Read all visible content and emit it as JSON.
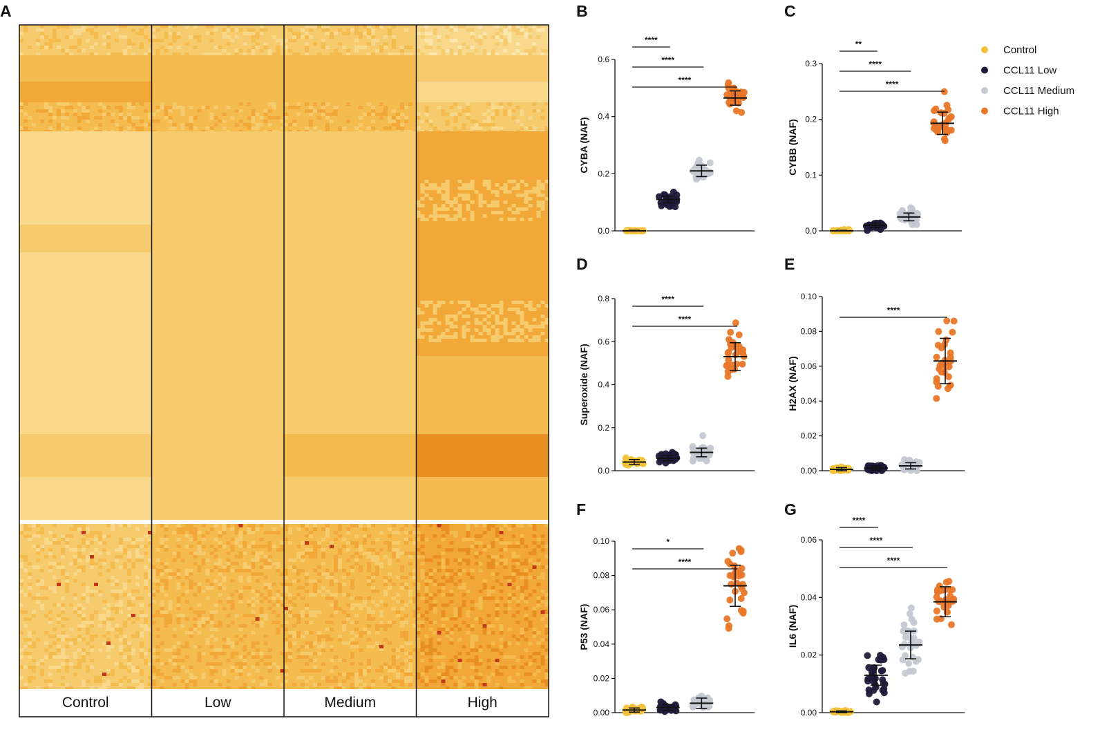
{
  "figure": {
    "panel_letters": [
      "A",
      "B",
      "C",
      "D",
      "E",
      "F",
      "G"
    ]
  },
  "legend": {
    "items": [
      {
        "label": "Control",
        "color": "#f2c23a"
      },
      {
        "label": "CCL11 Low",
        "color": "#1f1a3a"
      },
      {
        "label": "CCL11 Medium",
        "color": "#c3c8d2"
      },
      {
        "label": "CCL11 High",
        "color": "#e8772a"
      }
    ]
  },
  "chart_data": [
    {
      "type": "heatmap",
      "panel": "A",
      "columns": [
        "Control",
        "Low",
        "Medium",
        "High"
      ],
      "palette": [
        "#fbe6ae",
        "#f8d88a",
        "#f5cb6d",
        "#f4bb4f",
        "#f1a838",
        "#e98f22",
        "#c0391a",
        "#8a1c14"
      ],
      "description_blocks": [
        {
          "block": "header-striped",
          "levels": [
            2,
            2,
            2,
            1
          ]
        },
        {
          "block": "row-band",
          "levels": [
            3,
            3,
            3,
            2
          ]
        },
        {
          "block": "row-band",
          "levels": [
            4,
            3,
            3,
            1
          ]
        },
        {
          "block": "row-band-striped",
          "levels": [
            3,
            3,
            3,
            2
          ]
        },
        {
          "block": "row-band",
          "levels": [
            1,
            2,
            2,
            4
          ]
        },
        {
          "block": "row-band",
          "levels": [
            2,
            2,
            2,
            4
          ]
        },
        {
          "block": "row-band",
          "levels": [
            1,
            2,
            2,
            4
          ]
        },
        {
          "block": "row-band",
          "levels": [
            1,
            2,
            2,
            3
          ]
        },
        {
          "block": "row-band",
          "levels": [
            2,
            2,
            3,
            5
          ]
        },
        {
          "block": "row-band",
          "levels": [
            1,
            2,
            2,
            3
          ]
        },
        {
          "block": "lower-striped",
          "levels": [
            2,
            3,
            3,
            4
          ]
        }
      ]
    },
    {
      "type": "scatter",
      "panel": "B",
      "ylabel": "CYBA (NAF)",
      "ylim": [
        0,
        0.6
      ],
      "yticks": [
        "0.0",
        "0.2",
        "0.4",
        "0.6"
      ],
      "groups": [
        "Control",
        "CCL11 Low",
        "CCL11 Medium",
        "CCL11 High"
      ],
      "means": [
        0.0,
        0.11,
        0.21,
        0.465
      ],
      "sd": [
        0.002,
        0.012,
        0.02,
        0.025
      ],
      "spread": [
        0.002,
        0.03,
        0.035,
        0.05
      ],
      "comparisons": [
        {
          "from": 0,
          "to": 1,
          "label": "****"
        },
        {
          "from": 0,
          "to": 2,
          "label": "****"
        },
        {
          "from": 0,
          "to": 3,
          "label": "****"
        }
      ]
    },
    {
      "type": "scatter",
      "panel": "C",
      "ylabel": "CYBB (NAF)",
      "ylim": [
        0,
        0.3
      ],
      "yticks": [
        "0.0",
        "0.1",
        "0.2",
        "0.3"
      ],
      "groups": [
        "Control",
        "CCL11 Low",
        "CCL11 Medium",
        "CCL11 High"
      ],
      "means": [
        0.0,
        0.01,
        0.025,
        0.193
      ],
      "sd": [
        0.001,
        0.004,
        0.007,
        0.02
      ],
      "spread": [
        0.002,
        0.007,
        0.015,
        0.05
      ],
      "comparisons": [
        {
          "from": 0,
          "to": 1,
          "label": "**"
        },
        {
          "from": 0,
          "to": 2,
          "label": "****"
        },
        {
          "from": 0,
          "to": 3,
          "label": "****"
        }
      ]
    },
    {
      "type": "scatter",
      "panel": "D",
      "ylabel": "Superoxide (NAF)",
      "ylim": [
        0,
        0.8
      ],
      "yticks": [
        "0.0",
        "0.2",
        "0.4",
        "0.6",
        "0.8"
      ],
      "groups": [
        "Control",
        "CCL11 Low",
        "CCL11 Medium",
        "CCL11 High"
      ],
      "means": [
        0.04,
        0.058,
        0.085,
        0.53
      ],
      "sd": [
        0.012,
        0.012,
        0.02,
        0.065
      ],
      "spread": [
        0.02,
        0.03,
        0.04,
        0.14
      ],
      "comparisons": [
        {
          "from": 0,
          "to": 2,
          "label": "****"
        },
        {
          "from": 0,
          "to": 3,
          "label": "****"
        }
      ]
    },
    {
      "type": "scatter",
      "panel": "E",
      "ylabel": "H2AX (NAF)",
      "ylim": [
        0,
        0.1
      ],
      "yticks": [
        "0.00",
        "0.02",
        "0.04",
        "0.06",
        "0.08",
        "0.10"
      ],
      "groups": [
        "Control",
        "CCL11 Low",
        "CCL11 Medium",
        "CCL11 High"
      ],
      "means": [
        0.0008,
        0.0015,
        0.0028,
        0.063
      ],
      "sd": [
        0.001,
        0.0012,
        0.0018,
        0.013
      ],
      "spread": [
        0.0015,
        0.0025,
        0.004,
        0.026
      ],
      "comparisons": [
        {
          "from": 0,
          "to": 3,
          "label": "****"
        }
      ]
    },
    {
      "type": "scatter",
      "panel": "F",
      "ylabel": "P53 (NAF)",
      "ylim": [
        0,
        0.1
      ],
      "yticks": [
        "0.00",
        "0.02",
        "0.04",
        "0.06",
        "0.08",
        "0.10"
      ],
      "groups": [
        "Control",
        "CCL11 Low",
        "CCL11 Medium",
        "CCL11 High"
      ],
      "means": [
        0.0015,
        0.003,
        0.0055,
        0.074
      ],
      "sd": [
        0.0012,
        0.0018,
        0.003,
        0.012
      ],
      "spread": [
        0.002,
        0.003,
        0.004,
        0.024
      ],
      "comparisons": [
        {
          "from": 0,
          "to": 2,
          "label": "*"
        },
        {
          "from": 0,
          "to": 3,
          "label": "****"
        }
      ]
    },
    {
      "type": "scatter",
      "panel": "G",
      "ylabel": "IL6 (NAF)",
      "ylim": [
        0,
        0.06
      ],
      "yticks": [
        "0.00",
        "0.02",
        "0.04",
        "0.06"
      ],
      "groups": [
        "Control",
        "CCL11 Low",
        "CCL11 Medium",
        "CCL11 High"
      ],
      "means": [
        0.0003,
        0.013,
        0.0235,
        0.0385
      ],
      "sd": [
        0.0003,
        0.0035,
        0.0048,
        0.0052
      ],
      "spread": [
        0.0005,
        0.009,
        0.011,
        0.013
      ],
      "comparisons": [
        {
          "from": 0,
          "to": 1,
          "label": "****"
        },
        {
          "from": 0,
          "to": 2,
          "label": "****"
        },
        {
          "from": 0,
          "to": 3,
          "label": "****"
        }
      ]
    }
  ]
}
